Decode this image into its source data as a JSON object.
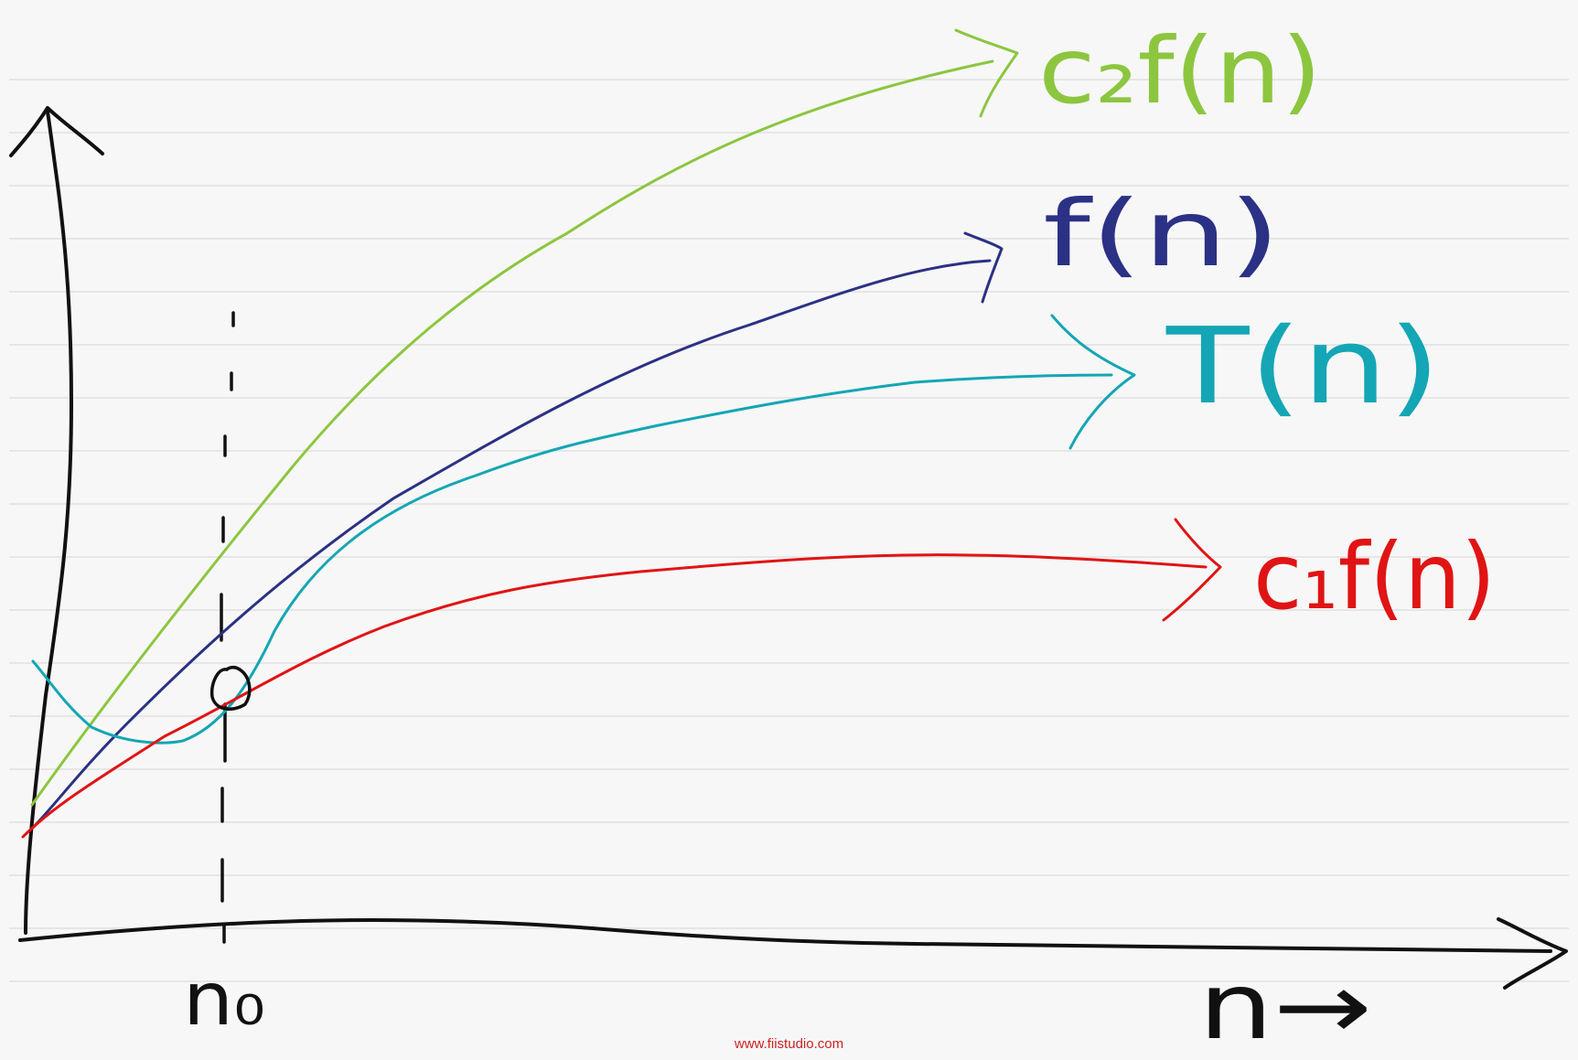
{
  "colors": {
    "axis": "#111111",
    "c2f": "#8cc63f",
    "f": "#2b3184",
    "T": "#14a6b5",
    "c1f": "#e01414",
    "watermark": "#cc2222"
  },
  "labels": {
    "c2f": "c₂f(n)",
    "f": "f(n)",
    "T": "T(n)",
    "c1f": "c₁f(n)",
    "x_axis": "n→",
    "n0": "n₀"
  },
  "watermark": "www.fiistudio.com"
}
